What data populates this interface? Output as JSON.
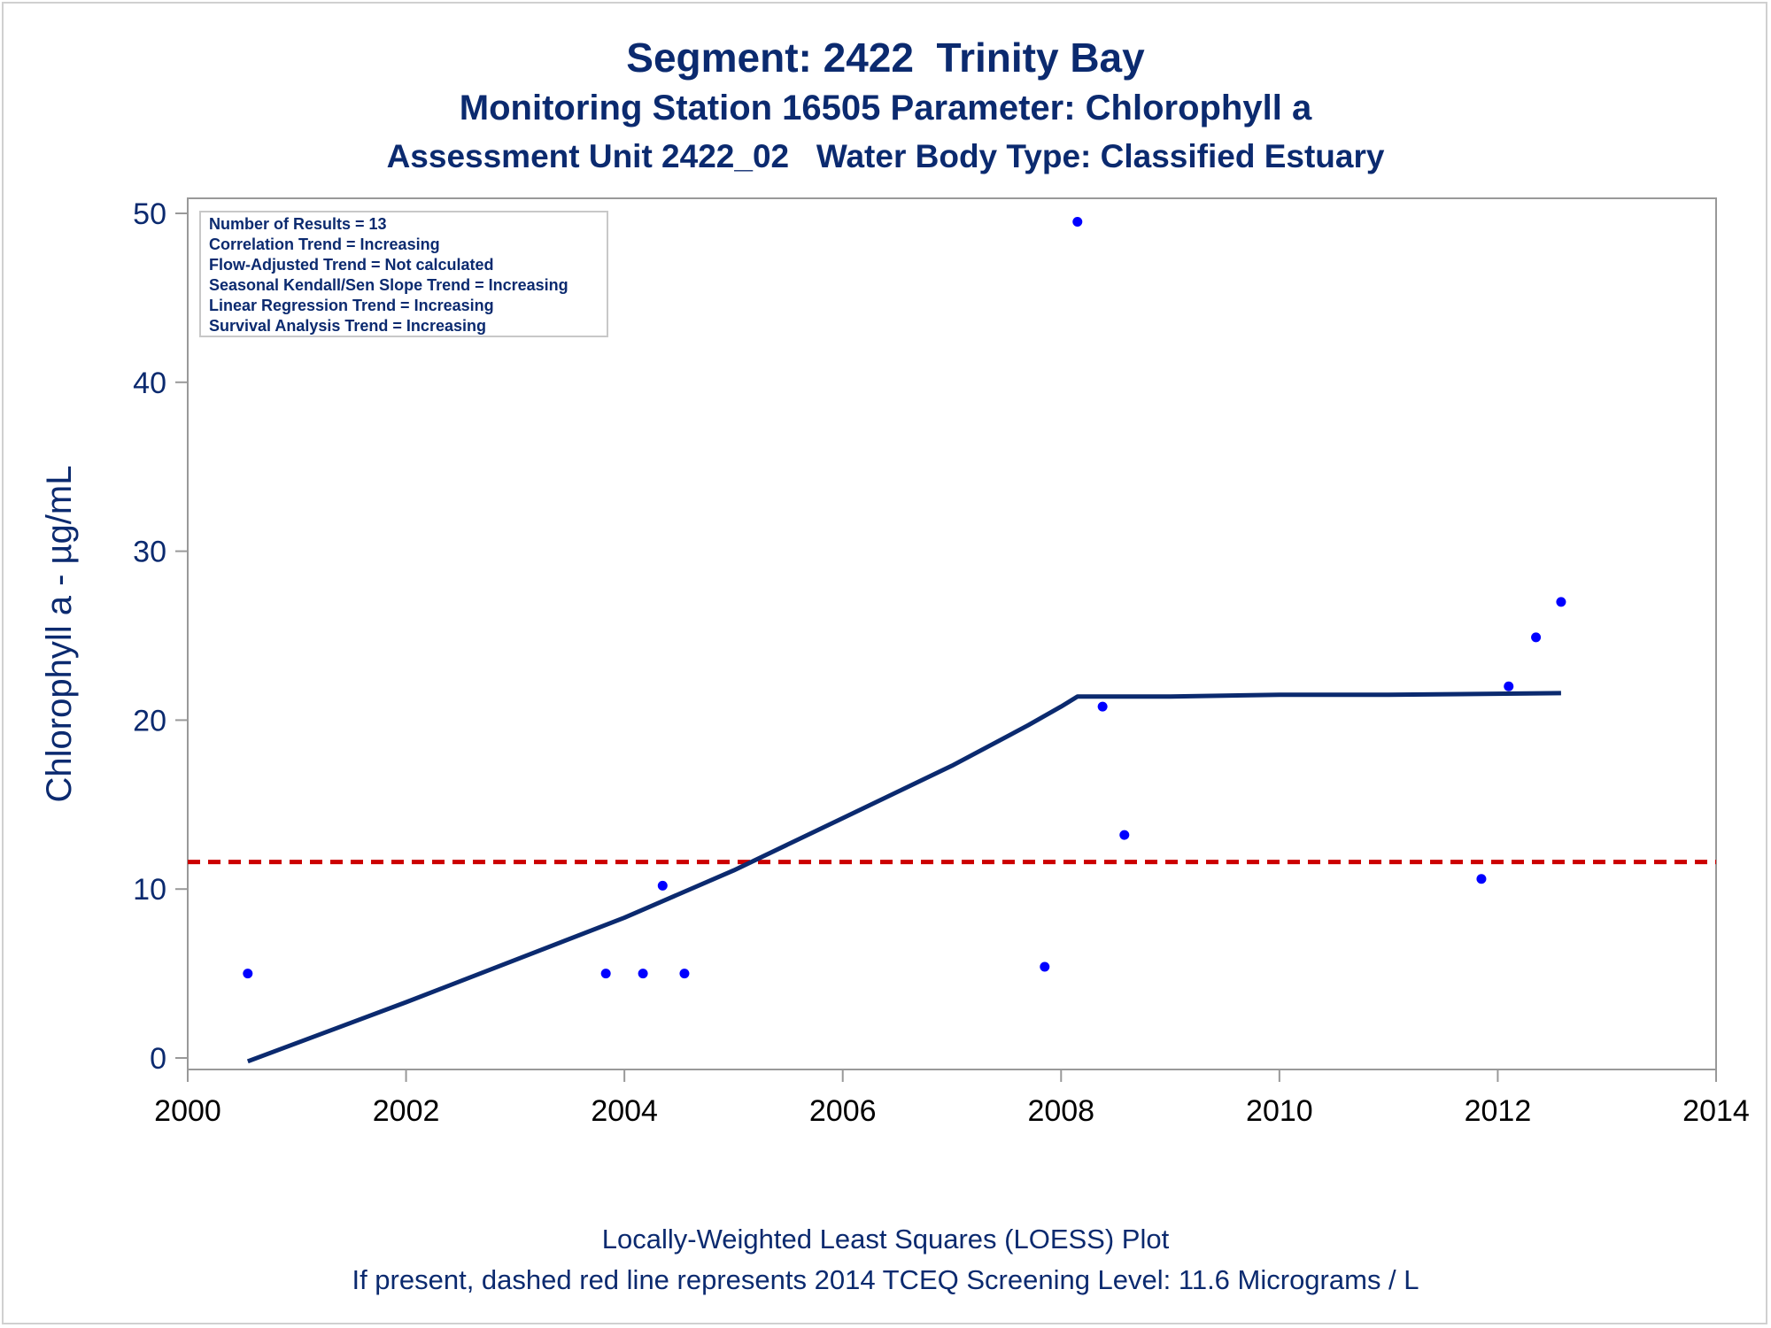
{
  "chart_data": {
    "type": "scatter",
    "title": "Segment: 2422  Trinity Bay",
    "subtitle": "Monitoring Station 16505 Parameter: Chlorophyll a",
    "subtitle2": "Assessment Unit 2422_02   Water Body Type: Classified Estuary",
    "xlabel": "",
    "ylabel": "Chlorophyll a -  µg/mL",
    "xlim": [
      2000,
      2014
    ],
    "ylim": [
      0,
      50
    ],
    "x_ticks": [
      2000,
      2002,
      2004,
      2006,
      2008,
      2010,
      2012,
      2014
    ],
    "y_ticks": [
      0,
      10,
      20,
      30,
      40,
      50
    ],
    "grid": false,
    "points": [
      {
        "x": 2000.55,
        "y": 5.0
      },
      {
        "x": 2003.83,
        "y": 5.0
      },
      {
        "x": 2004.17,
        "y": 5.0
      },
      {
        "x": 2004.35,
        "y": 10.2
      },
      {
        "x": 2004.55,
        "y": 5.0
      },
      {
        "x": 2007.85,
        "y": 5.4
      },
      {
        "x": 2008.15,
        "y": 49.5
      },
      {
        "x": 2008.38,
        "y": 20.8
      },
      {
        "x": 2008.58,
        "y": 13.2
      },
      {
        "x": 2011.85,
        "y": 10.6
      },
      {
        "x": 2012.1,
        "y": 22.0
      },
      {
        "x": 2012.35,
        "y": 24.9
      },
      {
        "x": 2012.58,
        "y": 27.0
      }
    ],
    "loess_line": [
      {
        "x": 2000.55,
        "y": -0.2
      },
      {
        "x": 2002.0,
        "y": 3.3
      },
      {
        "x": 2004.0,
        "y": 8.3
      },
      {
        "x": 2005.0,
        "y": 11.1
      },
      {
        "x": 2006.0,
        "y": 14.2
      },
      {
        "x": 2007.0,
        "y": 17.3
      },
      {
        "x": 2007.7,
        "y": 19.7
      },
      {
        "x": 2008.0,
        "y": 20.8
      },
      {
        "x": 2008.15,
        "y": 21.4
      },
      {
        "x": 2009.0,
        "y": 21.4
      },
      {
        "x": 2010.0,
        "y": 21.5
      },
      {
        "x": 2011.0,
        "y": 21.5
      },
      {
        "x": 2012.58,
        "y": 21.6
      }
    ],
    "screening_level": 11.6,
    "stats_box": [
      "Number of Results = 13",
      "Correlation Trend = Increasing",
      "Flow-Adjusted Trend = Not calculated",
      "Seasonal Kendall/Sen Slope Trend = Increasing",
      "Linear Regression Trend = Increasing",
      "Survival Analysis Trend = Increasing"
    ],
    "legend": "none",
    "colors": {
      "text": "#0b2a6f",
      "points": "#0000ff",
      "loess": "#0b2a6f",
      "screening": "#cc0000",
      "axis": "#999999",
      "xtick_labels": "#000000"
    }
  },
  "footer": {
    "line1": "Locally-Weighted Least Squares (LOESS) Plot",
    "line2": "If present, dashed red line represents 2014 TCEQ Screening Level: 11.6 Micrograms / L"
  }
}
